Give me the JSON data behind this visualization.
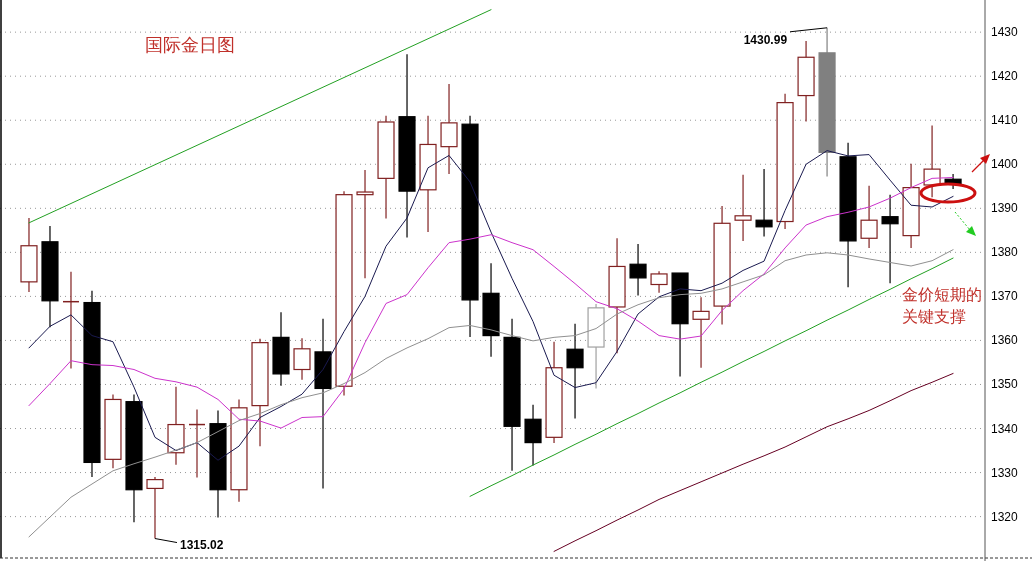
{
  "chart_data": {
    "type": "candlestick",
    "title": "国际金日图",
    "categories": [
      null,
      null,
      null,
      null,
      null,
      null,
      null,
      null,
      null,
      null,
      null,
      null,
      null,
      null,
      null,
      null,
      null,
      null,
      null,
      null,
      null,
      null,
      null,
      null,
      null,
      null,
      null,
      null,
      null,
      null,
      null,
      null,
      null,
      null,
      null,
      null,
      null,
      null,
      null,
      null,
      null,
      null,
      null,
      null,
      null
    ],
    "ohlc": [
      [
        1373.3,
        1387.8,
        1371,
        1381.5
      ],
      [
        1382.4,
        1386,
        1363,
        1369
      ],
      [
        1368.8,
        1375.6,
        1353.6,
        1368.8
      ],
      [
        1368.6,
        1371.3,
        1329,
        1332.3
      ],
      [
        1333,
        1347.7,
        1331,
        1346.6
      ],
      [
        1346.1,
        1347.7,
        1318.7,
        1326.1
      ],
      [
        1326.4,
        1329,
        1315.02,
        1328.4
      ],
      [
        1334.5,
        1349.5,
        1331.8,
        1340.9
      ],
      [
        1340.9,
        1344.3,
        1328.9,
        1340.9
      ],
      [
        1341.1,
        1344.1,
        1319.8,
        1326.1
      ],
      [
        1326.1,
        1346.6,
        1323.4,
        1344.7
      ],
      [
        1345.2,
        1360.4,
        1336,
        1359.5
      ],
      [
        1360.7,
        1366.4,
        1349.7,
        1352.4
      ],
      [
        1353.4,
        1360.5,
        1351.1,
        1358.1
      ],
      [
        1357.4,
        1364.9,
        1326.4,
        1349.1
      ],
      [
        1349.6,
        1393.9,
        1347.5,
        1393.1
      ],
      [
        1393.1,
        1398.7,
        1374.1,
        1393.7
      ],
      [
        1396.8,
        1411,
        1387.7,
        1409.6
      ],
      [
        1410.8,
        1425,
        1383.4,
        1393.9
      ],
      [
        1394.2,
        1411,
        1384.6,
        1404.5
      ],
      [
        1404,
        1418.2,
        1397.8,
        1409.4
      ],
      [
        1409.1,
        1411,
        1360.8,
        1369.2
      ],
      [
        1370.7,
        1377.5,
        1356.3,
        1361.1
      ],
      [
        1360.7,
        1364.9,
        1330.4,
        1340.5
      ],
      [
        1342.1,
        1345.4,
        1331.6,
        1336.8
      ],
      [
        1338,
        1359.7,
        1336.7,
        1353.8
      ],
      [
        1358,
        1363.8,
        1342.3,
        1353.8
      ],
      [
        1358.5,
        1368.3,
        1349.1,
        1367.4
      ],
      [
        1367.6,
        1383.2,
        1357.1,
        1376.8
      ],
      [
        1377.3,
        1381.9,
        1370.2,
        1374.2
      ],
      [
        1372.7,
        1375.7,
        1370.8,
        1375.1
      ],
      [
        1375.3,
        1375.3,
        1351.8,
        1363.8
      ],
      [
        1364.8,
        1369.8,
        1353.8,
        1366.6
      ],
      [
        1367.8,
        1390.5,
        1363.6,
        1386.6
      ],
      [
        1387.3,
        1397.6,
        1382.6,
        1388.3
      ],
      [
        1387.3,
        1398.9,
        1383.6,
        1385.8
      ],
      [
        1387,
        1416,
        1385.3,
        1414
      ],
      [
        1415.6,
        1428,
        1409.7,
        1424.3
      ],
      [
        1425.3,
        1430.99,
        1397.2,
        1402.7
      ],
      [
        1401.7,
        1404.9,
        1372.1,
        1382.6
      ],
      [
        1383.2,
        1395.1,
        1381,
        1387.3
      ],
      [
        1388.1,
        1393.1,
        1373,
        1386.5
      ],
      [
        1383.8,
        1400.1,
        1381,
        1394.7
      ],
      [
        1395.3,
        1408.8,
        1392.5,
        1398.9
      ],
      [
        1396.6,
        1397.8,
        1394.4,
        1395.5
      ]
    ],
    "colors": [
      "#802020",
      "#000000",
      "#802020",
      "#000000",
      "#802020",
      "#000000",
      "#802020",
      "#802020",
      "#802020",
      "#000000",
      "#802020",
      "#802020",
      "#000000",
      "#802020",
      "#000000",
      "#802020",
      "#802020",
      "#802020",
      "#000000",
      "#802020",
      "#802020",
      "#000000",
      "#000000",
      "#000000",
      "#000000",
      "#802020",
      "#000000",
      "#a0a0a0",
      "#802020",
      "#000000",
      "#802020",
      "#000000",
      "#802020",
      "#802020",
      "#802020",
      "#000000",
      "#802020",
      "#802020",
      "#808080",
      "#000000",
      "#802020",
      "#000000",
      "#802020",
      "#802020",
      "#000000"
    ],
    "series": [
      {
        "type": "line",
        "color": "#1a1a50",
        "values": [
          1358.3,
          1363.2,
          1365.8,
          1361.1,
          1359.7,
          1349.4,
          1338,
          1335,
          1336.8,
          1332.8,
          1336,
          1342.5,
          1345,
          1347.8,
          1353.4,
          1362,
          1370,
          1381.4,
          1387.8,
          1399.2,
          1402,
          1396,
          1384.6,
          1374.1,
          1364.3,
          1352.1,
          1349.3,
          1350.4,
          1357.5,
          1366,
          1369.9,
          1371.7,
          1371.3,
          1373,
          1375.9,
          1378,
          1389.5,
          1400,
          1403.1,
          1401.9,
          1402.2,
          1396.4,
          1390.7,
          1390.3,
          1392.7
        ]
      },
      {
        "type": "line",
        "color": "#cc33cc",
        "values": [
          1345.2,
          1350.2,
          1355.4,
          1354.5,
          1354.3,
          1353.4,
          1351.4,
          1350.6,
          1349.4,
          1346.6,
          1342.1,
          1341.7,
          1340.1,
          1342.5,
          1342.7,
          1349,
          1359.5,
          1368.4,
          1370.4,
          1376.5,
          1382.2,
          1383,
          1384,
          1382.2,
          1380.6,
          1376.8,
          1372.9,
          1368.8,
          1367.2,
          1364.4,
          1361.1,
          1360.3,
          1361,
          1366.8,
          1371.3,
          1375.1,
          1381,
          1386.2,
          1388.1,
          1389.1,
          1390.3,
          1392.3,
          1394.7,
          1396.8,
          1397
        ]
      },
      {
        "type": "line",
        "color": "#909090",
        "values": [
          1315.4,
          1319.9,
          1324.4,
          1327.4,
          1330.4,
          1332,
          1333.5,
          1335.1,
          1336.8,
          1339.3,
          1341.8,
          1343.4,
          1345.4,
          1347,
          1348.1,
          1350.2,
          1352.7,
          1355.9,
          1358.3,
          1360.4,
          1362.9,
          1363.4,
          1362.4,
          1361.1,
          1359.9,
          1360.7,
          1361.1,
          1362.7,
          1366,
          1368.1,
          1369.7,
          1370.4,
          1370.7,
          1371.7,
          1373.3,
          1374.9,
          1378.1,
          1379.4,
          1379.9,
          1379.4,
          1378.5,
          1377.7,
          1376.9,
          1378.1,
          1380.6
        ]
      },
      {
        "type": "line",
        "color": "#660022",
        "values": [
          null,
          null,
          null,
          null,
          null,
          null,
          null,
          null,
          null,
          null,
          null,
          null,
          null,
          null,
          null,
          null,
          null,
          null,
          null,
          null,
          null,
          null,
          null,
          null,
          null,
          1312.1,
          1314.5,
          1316.8,
          1319.2,
          1321.5,
          1323.9,
          1325.9,
          1327.9,
          1329.9,
          1331.9,
          1333.8,
          1335.8,
          1338.1,
          1340.4,
          1342.2,
          1344.1,
          1346.3,
          1348.6,
          1350.5,
          1352.5
        ]
      },
      {
        "type": "line",
        "color": "#22a022",
        "values": [
          1386.7,
          1388.9,
          1391.1,
          1393.3,
          1395.5,
          1397.7,
          1399.9,
          1402.1,
          1404.3,
          1406.5,
          1408.7,
          1410.9,
          1413.1,
          1415.3,
          1417.5,
          1419.7,
          1421.9,
          1424.1,
          1426.3,
          1428.5,
          1430.7,
          1432.9,
          1435.1,
          null,
          null,
          null,
          null,
          null,
          null,
          null,
          null,
          null,
          null,
          null,
          null,
          null,
          null,
          null,
          null,
          null,
          null,
          null,
          null,
          null,
          null
        ]
      },
      {
        "type": "line",
        "color": "#22a022",
        "values": [
          null,
          null,
          null,
          null,
          null,
          null,
          null,
          null,
          null,
          null,
          null,
          null,
          null,
          null,
          null,
          null,
          null,
          null,
          null,
          null,
          null,
          1324.6,
          1327,
          1329.3,
          1331.7,
          1334,
          1336.4,
          1338.7,
          1341.1,
          1343.4,
          1345.8,
          1348.1,
          1350.5,
          1352.8,
          1355.2,
          1357.5,
          1359.9,
          1362.2,
          1364.6,
          1366.9,
          1369.3,
          1371.6,
          1374,
          1376.3,
          1378.7
        ]
      }
    ],
    "ylim": [
      1310.6,
      1437.3
    ],
    "yticks": [
      1320,
      1330,
      1340,
      1350,
      1360,
      1370,
      1380,
      1390,
      1400,
      1410,
      1420,
      1430
    ],
    "grid": "y",
    "tick_labels": "y",
    "annotations": [
      "1430.99",
      "1315.02",
      "金价短期的关键支撑"
    ]
  }
}
